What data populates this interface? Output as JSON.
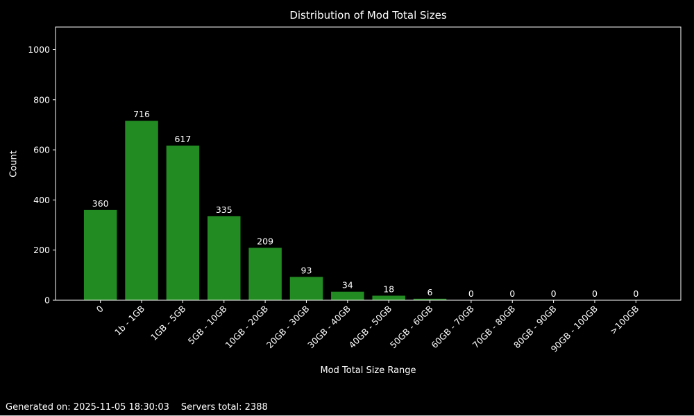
{
  "figure": {
    "background": "#000000",
    "text_color": "#ffffff",
    "footer": {
      "generated_label": "Generated on: 2025-11-05 18:30:03",
      "servers_label": "Servers total: 2388"
    }
  },
  "chart_data": {
    "type": "bar",
    "title": "Distribution of Mod Total Sizes",
    "xlabel": "Mod Total Size Range",
    "ylabel": "Count",
    "categories": [
      "0",
      "1b - 1GB",
      "1GB - 5GB",
      "5GB - 10GB",
      "10GB - 20GB",
      "20GB - 30GB",
      "30GB - 40GB",
      "40GB - 50GB",
      "50GB - 60GB",
      "60GB - 70GB",
      "70GB - 80GB",
      "80GB - 90GB",
      "90GB - 100GB",
      ">100GB"
    ],
    "values": [
      360,
      716,
      617,
      335,
      209,
      93,
      34,
      18,
      6,
      0,
      0,
      0,
      0,
      0
    ],
    "yticks": [
      0,
      200,
      400,
      600,
      800,
      1000
    ],
    "ylim": [
      0,
      1090
    ],
    "grid": false,
    "legend": "none",
    "bar_color": "#228B22",
    "axis_color": "#ffffff",
    "text_color": "#ffffff",
    "xtick_rotation_deg": 45,
    "value_labels_shown": true
  }
}
